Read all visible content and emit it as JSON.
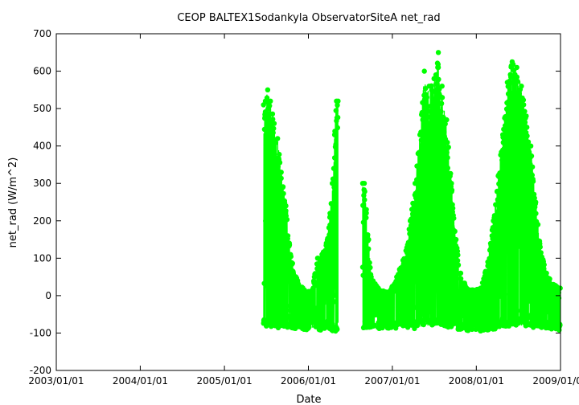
{
  "chart_data": {
    "type": "scatter",
    "title": "CEOP BALTEX1Sodankyla ObservatorSiteA  net_rad",
    "xlabel": "Date",
    "ylabel": "net_rad (W/m^2)",
    "xlim": [
      "2003/01/01",
      "2009/01/01"
    ],
    "ylim": [
      -200,
      700
    ],
    "xticks": [
      "2003/01/01",
      "2004/01/01",
      "2005/01/01",
      "2006/01/01",
      "2007/01/01",
      "2008/01/01",
      "2009/01/01"
    ],
    "yticks": [
      -200,
      -100,
      0,
      100,
      200,
      300,
      400,
      500,
      600,
      700
    ],
    "grid": false,
    "legend": "none",
    "series_color": "#00ff00",
    "series": [
      {
        "envelope_x": [
          "2005/06/20",
          "2005/06/28",
          "2005/07/08",
          "2005/07/20",
          "2005/08/05",
          "2005/08/20",
          "2005/09/05",
          "2005/09/25",
          "2005/10/15",
          "2005/11/15",
          "2005/12/15",
          "2006/01/15",
          "2006/02/10",
          "2006/03/01",
          "2006/03/20",
          "2006/04/05",
          "2006/04/15",
          "2006/04/25",
          "2006/05/03",
          "2006/05/10",
          "2006/08/25",
          "2006/09/01",
          "2006/09/10",
          "2006/09/20",
          "2006/10/01",
          "2006/11/01",
          "2006/12/01",
          "2007/01/01",
          "2007/02/01",
          "2007/03/01",
          "2007/03/20",
          "2007/04/10",
          "2007/05/01",
          "2007/05/20",
          "2007/06/10",
          "2007/07/01",
          "2007/07/20",
          "2007/08/05",
          "2007/08/25",
          "2007/09/15",
          "2007/10/05",
          "2007/10/25",
          "2007/11/20",
          "2007/12/20",
          "2008/01/20",
          "2008/02/20",
          "2008/03/15",
          "2008/04/05",
          "2008/04/25",
          "2008/05/15",
          "2008/06/05",
          "2008/06/25",
          "2008/07/15",
          "2008/08/05",
          "2008/08/25",
          "2008/09/15",
          "2008/10/05",
          "2008/11/01",
          "2008/12/01",
          "2008/12/31"
        ],
        "envelope_max": [
          510,
          520,
          550,
          520,
          460,
          420,
          330,
          240,
          110,
          40,
          15,
          10,
          100,
          110,
          140,
          220,
          300,
          430,
          520,
          520,
          300,
          300,
          230,
          150,
          50,
          20,
          10,
          25,
          70,
          120,
          200,
          300,
          430,
          600,
          560,
          580,
          650,
          560,
          470,
          300,
          150,
          60,
          20,
          15,
          20,
          90,
          200,
          320,
          430,
          570,
          625,
          610,
          560,
          480,
          400,
          250,
          130,
          60,
          30,
          20
        ],
        "envelope_min": [
          -80,
          -85,
          -80,
          -85,
          -85,
          -90,
          -90,
          -85,
          -85,
          -90,
          -95,
          -85,
          -90,
          -95,
          -85,
          -90,
          -95,
          -95,
          -95,
          -90,
          -95,
          -90,
          -85,
          -85,
          -85,
          -90,
          -85,
          -90,
          -85,
          -85,
          -85,
          -90,
          -85,
          -80,
          -80,
          -80,
          -80,
          -80,
          -85,
          -85,
          -90,
          -90,
          -95,
          -90,
          -95,
          -95,
          -90,
          -90,
          -85,
          -85,
          -80,
          -80,
          -80,
          -85,
          -85,
          -85,
          -90,
          -90,
          -95,
          -95
        ]
      }
    ]
  }
}
